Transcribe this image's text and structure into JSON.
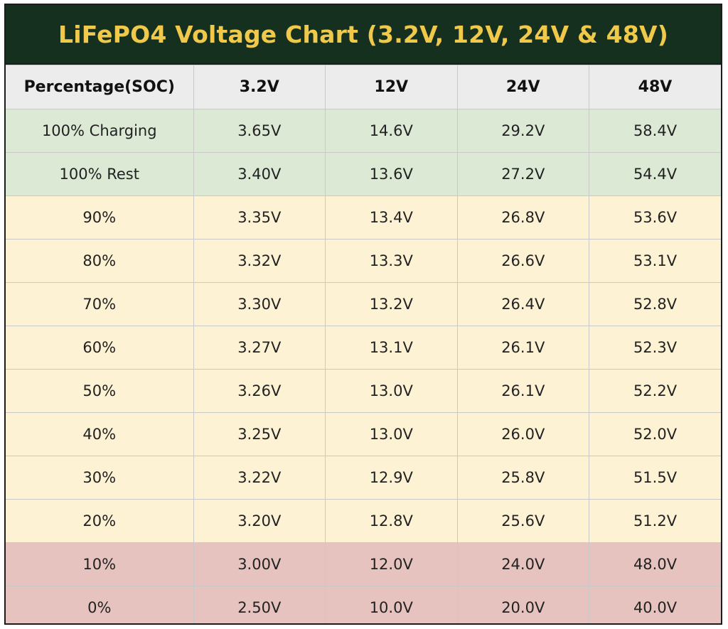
{
  "title": "LiFePO4 Voltage Chart (3.2V, 12V, 24V & 48V)",
  "colors": {
    "title_background": "#16301f",
    "title_text": "#f0c94a",
    "header_background": "#ececed",
    "full_charge_rows": "#dce9d5",
    "mid_rows": "#fdf2d3",
    "low_rows": "#e6c3bf"
  },
  "table": {
    "headers": [
      "Percentage(SOC)",
      "3.2V",
      "12V",
      "24V",
      "48V"
    ],
    "rows": [
      {
        "band": "green",
        "cells": [
          "100% Charging",
          "3.65V",
          "14.6V",
          "29.2V",
          "58.4V"
        ]
      },
      {
        "band": "green",
        "cells": [
          "100% Rest",
          "3.40V",
          "13.6V",
          "27.2V",
          "54.4V"
        ]
      },
      {
        "band": "yellow",
        "cells": [
          "90%",
          "3.35V",
          "13.4V",
          "26.8V",
          "53.6V"
        ]
      },
      {
        "band": "yellow",
        "cells": [
          "80%",
          "3.32V",
          "13.3V",
          "26.6V",
          "53.1V"
        ]
      },
      {
        "band": "yellow",
        "cells": [
          "70%",
          "3.30V",
          "13.2V",
          "26.4V",
          "52.8V"
        ]
      },
      {
        "band": "yellow",
        "cells": [
          "60%",
          "3.27V",
          "13.1V",
          "26.1V",
          "52.3V"
        ]
      },
      {
        "band": "yellow",
        "cells": [
          "50%",
          "3.26V",
          "13.0V",
          "26.1V",
          "52.2V"
        ]
      },
      {
        "band": "yellow",
        "cells": [
          "40%",
          "3.25V",
          "13.0V",
          "26.0V",
          "52.0V"
        ]
      },
      {
        "band": "yellow",
        "cells": [
          "30%",
          "3.22V",
          "12.9V",
          "25.8V",
          "51.5V"
        ]
      },
      {
        "band": "yellow",
        "cells": [
          "20%",
          "3.20V",
          "12.8V",
          "25.6V",
          "51.2V"
        ]
      },
      {
        "band": "red",
        "cells": [
          "10%",
          "3.00V",
          "12.0V",
          "24.0V",
          "48.0V"
        ]
      },
      {
        "band": "red",
        "cells": [
          "0%",
          "2.50V",
          "10.0V",
          "20.0V",
          "40.0V"
        ]
      }
    ]
  }
}
